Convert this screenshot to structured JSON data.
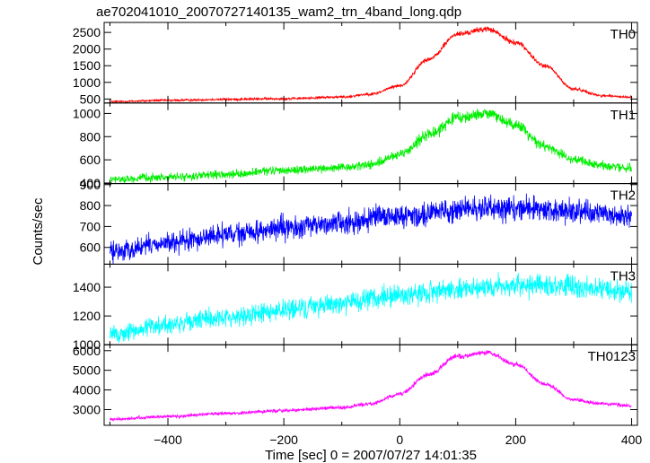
{
  "chart_data": {
    "type": "line",
    "title": "ae702041010_20070727140135_wam2_trn_4band_long.qdp",
    "xlabel": "Time [sec] 0 = 2007/07/27 14:01:35",
    "ylabel": "Counts/sec",
    "xlim": [
      -510,
      410
    ],
    "xticks": [
      -400,
      -200,
      0,
      200,
      400
    ],
    "grid": false,
    "series": [
      {
        "name": "TH0",
        "color": "#ff0000",
        "ylim": [
          380,
          2800
        ],
        "yticks": [
          500,
          1000,
          1500,
          2000,
          2500
        ],
        "x": [
          -500,
          -400,
          -300,
          -200,
          -100,
          -50,
          0,
          50,
          100,
          150,
          200,
          250,
          300,
          350,
          400
        ],
        "y": [
          420,
          460,
          490,
          510,
          560,
          650,
          900,
          1700,
          2450,
          2600,
          2200,
          1500,
          800,
          600,
          550
        ]
      },
      {
        "name": "TH1",
        "color": "#00ee00",
        "ylim": [
          395,
          1090
        ],
        "yticks": [
          400,
          600,
          800,
          1000
        ],
        "x": [
          -500,
          -400,
          -300,
          -200,
          -100,
          -50,
          0,
          50,
          100,
          150,
          200,
          250,
          300,
          350,
          400
        ],
        "y": [
          430,
          450,
          470,
          510,
          530,
          560,
          640,
          820,
          960,
          1000,
          900,
          720,
          600,
          550,
          530
        ]
      },
      {
        "name": "TH2",
        "color": "#0000ff",
        "ylim": [
          520,
          905
        ],
        "yticks": [
          600,
          700,
          800,
          900
        ],
        "x": [
          -500,
          -400,
          -300,
          -200,
          -100,
          0,
          100,
          200,
          300,
          400
        ],
        "y": [
          580,
          620,
          660,
          690,
          720,
          750,
          780,
          790,
          770,
          750
        ]
      },
      {
        "name": "TH3",
        "color": "#00ffff",
        "ylim": [
          1000,
          1560
        ],
        "yticks": [
          1000,
          1200,
          1400
        ],
        "x": [
          -500,
          -400,
          -300,
          -200,
          -100,
          0,
          100,
          200,
          300,
          400
        ],
        "y": [
          1070,
          1140,
          1190,
          1240,
          1290,
          1340,
          1390,
          1410,
          1400,
          1370
        ]
      },
      {
        "name": "TH0123",
        "color": "#ff00ff",
        "ylim": [
          2200,
          6300
        ],
        "yticks": [
          3000,
          4000,
          5000,
          6000
        ],
        "x": [
          -500,
          -400,
          -300,
          -200,
          -100,
          -50,
          0,
          50,
          100,
          150,
          200,
          250,
          300,
          350,
          400
        ],
        "y": [
          2500,
          2650,
          2800,
          2950,
          3100,
          3300,
          3800,
          4800,
          5700,
          5900,
          5300,
          4300,
          3500,
          3300,
          3200
        ]
      }
    ]
  }
}
